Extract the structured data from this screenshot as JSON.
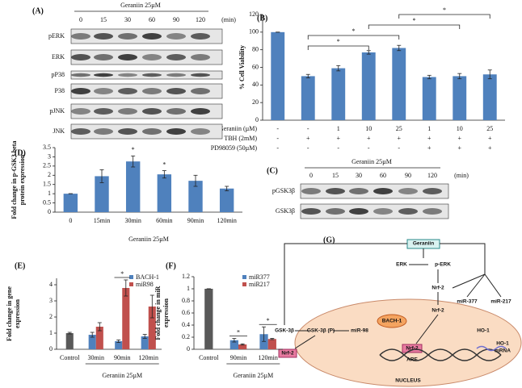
{
  "chart_data": [
    {
      "type": "bar",
      "panel": "(B)",
      "ylabel": [
        "% Cell Viability"
      ],
      "values": [
        100,
        50,
        59,
        77,
        82,
        49,
        50,
        52
      ],
      "errors": [
        0,
        2,
        3,
        2,
        3,
        2,
        3,
        5
      ],
      "color": "#4f81bd",
      "ylim": [
        0,
        120
      ],
      "yticks": [
        0,
        20,
        40,
        60,
        80,
        100,
        120
      ],
      "conditions": [
        {
          "name": "Geraniin (µM)",
          "values": [
            "-",
            "-",
            "1",
            "10",
            "25",
            "1",
            "10",
            "25"
          ]
        },
        {
          "name": "TBH (2mM)",
          "values": [
            "-",
            "+",
            "+",
            "+",
            "+",
            "+",
            "+",
            "+"
          ]
        },
        {
          "name": "PD98059 (50µM)",
          "values": [
            "-",
            "-",
            "-",
            "-",
            "-",
            "+",
            "+",
            "+"
          ]
        }
      ],
      "annotations": [
        "*",
        "*",
        "*",
        "*"
      ]
    },
    {
      "type": "bar",
      "panel": "(D)",
      "ylabel": [
        "Fold change in p-GSK3 beta",
        "protein expression"
      ],
      "xlabel": "Geraniin 25µM",
      "categories": [
        "0",
        "15min",
        "30min",
        "60min",
        "90min",
        "120min"
      ],
      "values": [
        1,
        1.95,
        2.75,
        2.05,
        1.7,
        1.28
      ],
      "errors": [
        0,
        0.35,
        0.3,
        0.2,
        0.3,
        0.12
      ],
      "color": "#4f81bd",
      "ylim": [
        0,
        3.5
      ],
      "yticks": [
        0,
        0.5,
        1,
        1.5,
        2,
        2.5,
        3,
        3.5
      ],
      "annotations": [
        "*",
        "*"
      ]
    },
    {
      "type": "grouped_bar",
      "panel": "(E)",
      "ylabel": [
        "Fold change in gene",
        "expression"
      ],
      "xlabel": "Geraniin 25µM",
      "categories": [
        "Control",
        "30min",
        "90min",
        "120min"
      ],
      "control": {
        "value": 1,
        "error": 0.05,
        "color": "#595959"
      },
      "series": [
        {
          "name": "BACH-1",
          "color": "#4f81bd",
          "values": [
            null,
            0.9,
            0.5,
            0.8
          ],
          "errors": [
            null,
            0.15,
            0.08,
            0.12
          ]
        },
        {
          "name": "miR98",
          "color": "#c0504d",
          "values": [
            null,
            1.4,
            3.8,
            2.65
          ],
          "errors": [
            null,
            0.25,
            0.5,
            0.7
          ]
        }
      ],
      "ylim": [
        0,
        4.4
      ],
      "yticks": [
        0,
        1,
        2,
        3,
        4
      ],
      "annotations": [
        "*"
      ]
    },
    {
      "type": "grouped_bar",
      "panel": "(F)",
      "ylabel": [
        "Fold change in miR",
        "expression"
      ],
      "xlabel": "Geraniin 25µM",
      "categories": [
        "Control",
        "90min",
        "120min"
      ],
      "control": {
        "value": 1,
        "error": 0,
        "color": "#595959"
      },
      "series": [
        {
          "name": "miR377",
          "color": "#4f81bd",
          "values": [
            null,
            0.15,
            0.25
          ],
          "errors": [
            null,
            0.03,
            0.12
          ]
        },
        {
          "name": "miR217",
          "color": "#c0504d",
          "values": [
            null,
            0.08,
            0.17
          ],
          "errors": [
            null,
            0.01,
            0.01
          ]
        }
      ],
      "ylim": [
        0,
        1.2
      ],
      "yticks": [
        0,
        0.2,
        0.4,
        0.6,
        0.8,
        1,
        1.2
      ],
      "annotations": [
        "*",
        "*"
      ]
    }
  ],
  "blots": [
    {
      "panel": "(A)",
      "treatment": "Geraniin 25µM",
      "lanes": [
        "0",
        "15",
        "30",
        "60",
        "90",
        "120"
      ],
      "unit": "(min)",
      "rows": [
        "pERK",
        "ERK",
        "pP38",
        "P38",
        "pJNK",
        "JNK"
      ]
    },
    {
      "panel": "(C)",
      "treatment": "Geraniin 25µM",
      "lanes": [
        "0",
        "15",
        "30",
        "60",
        "90",
        "120"
      ],
      "unit": "(min)",
      "rows": [
        "pGSK3β",
        "GSK3β"
      ]
    }
  ],
  "diagram": {
    "panel": "(G)",
    "nodes": [
      "Geraniin",
      "ERK",
      "p-ERK",
      "Nrf-2",
      "Nrf-2",
      "miR-377",
      "miR-217",
      "GSK-3β",
      "GSK-3β (P)",
      "miR-98",
      "BACH-1",
      "Nrf-2",
      "ARE",
      "HO-1",
      "HO-1",
      "mRNA",
      "NUCLEUS",
      "Nrf-2"
    ]
  }
}
